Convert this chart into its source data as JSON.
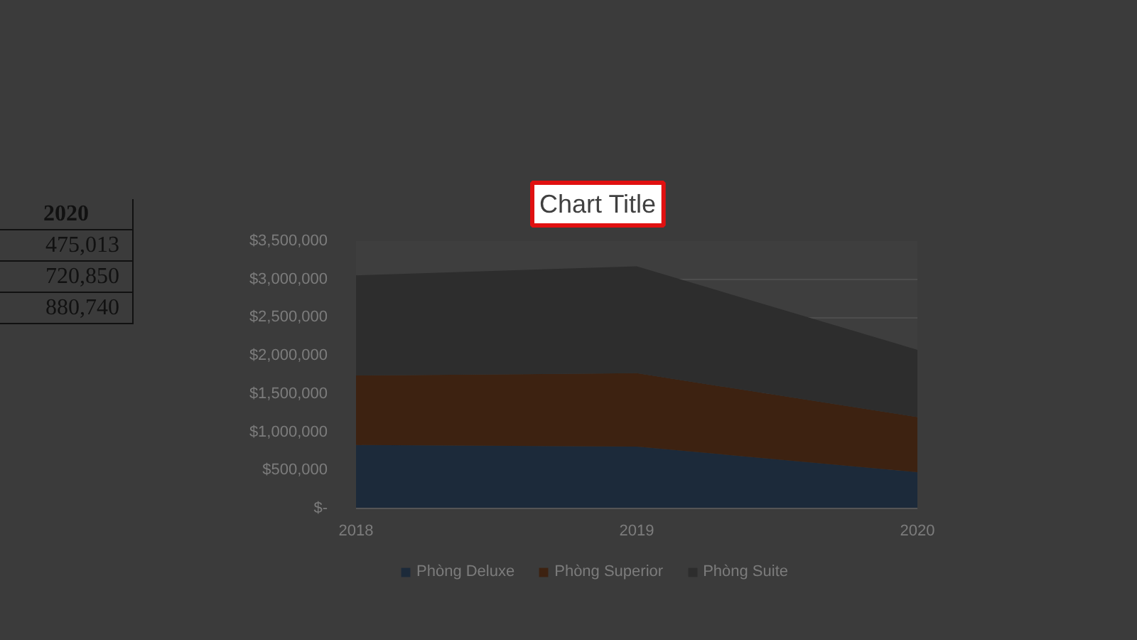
{
  "chart_data": {
    "type": "area",
    "title": "Chart Title",
    "categories": [
      "2018",
      "2019",
      "2020"
    ],
    "stacked": true,
    "series": [
      {
        "name": "Phòng Deluxe",
        "color": "#1c2a3a",
        "values": [
          830000,
          810000,
          475013
        ]
      },
      {
        "name": "Phòng Superior",
        "color": "#3d2211",
        "values": [
          910000,
          960000,
          720850
        ]
      },
      {
        "name": "Phòng Suite",
        "color": "#2d2d2d",
        "values": [
          1310000,
          1400000,
          880740
        ]
      }
    ],
    "ylim": [
      0,
      3500000
    ],
    "yticks": [
      {
        "value": 0,
        "label": "$-"
      },
      {
        "value": 500000,
        "label": "$500,000"
      },
      {
        "value": 1000000,
        "label": "$1,000,000"
      },
      {
        "value": 1500000,
        "label": "$1,500,000"
      },
      {
        "value": 2000000,
        "label": "$2,000,000"
      },
      {
        "value": 2500000,
        "label": "$2,500,000"
      },
      {
        "value": 3000000,
        "label": "$3,000,000"
      },
      {
        "value": 3500000,
        "label": "$3,500,000"
      }
    ],
    "grid": "y",
    "legend": "bottom",
    "annotations": [
      "2020",
      "475,013",
      "720,850",
      "880,740"
    ]
  }
}
